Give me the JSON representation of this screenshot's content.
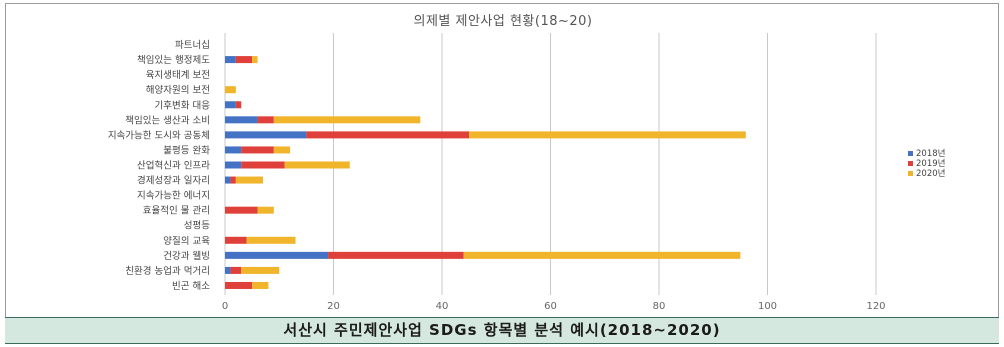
{
  "chart_data": {
    "type": "bar",
    "stacked": true,
    "orientation": "horizontal",
    "title": "의제별 제안사업 현황(18~20)",
    "categories": [
      "파트너십",
      "책임있는 행정제도",
      "육지생태계 보전",
      "해양자원의 보전",
      "기후변화 대응",
      "책임있는 생산과 소비",
      "지속가능한 도시와 공동체",
      "불평등 완화",
      "산업혁신과 인프라",
      "경제성장과 일자리",
      "지속가능한 에너지",
      "효율적인 물 관리",
      "성평등",
      "양질의 교육",
      "건강과 웰빙",
      "친환경 농업과 먹거리",
      "빈곤 해소"
    ],
    "series": [
      {
        "name": "2018년",
        "color": "#4472c4",
        "values": [
          0,
          2,
          0,
          0,
          2,
          6,
          15,
          3,
          3,
          1,
          0,
          0,
          0,
          0,
          19,
          1,
          0
        ]
      },
      {
        "name": "2019년",
        "color": "#e0403a",
        "values": [
          0,
          3,
          0,
          0,
          1,
          3,
          30,
          6,
          8,
          1,
          0,
          6,
          0,
          4,
          25,
          2,
          5
        ]
      },
      {
        "name": "2020년",
        "color": "#f0b52a",
        "values": [
          0,
          1,
          0,
          2,
          0,
          27,
          51,
          3,
          12,
          5,
          0,
          3,
          0,
          9,
          51,
          7,
          3
        ]
      }
    ],
    "xticks": [
      "0",
      "20",
      "40",
      "60",
      "80",
      "100",
      "120"
    ],
    "xlim": [
      0,
      120
    ],
    "grid": true,
    "legend": "right"
  },
  "caption": "서산시 주민제안사업 SDGs 항목별 분석 예시(2018~2020)"
}
